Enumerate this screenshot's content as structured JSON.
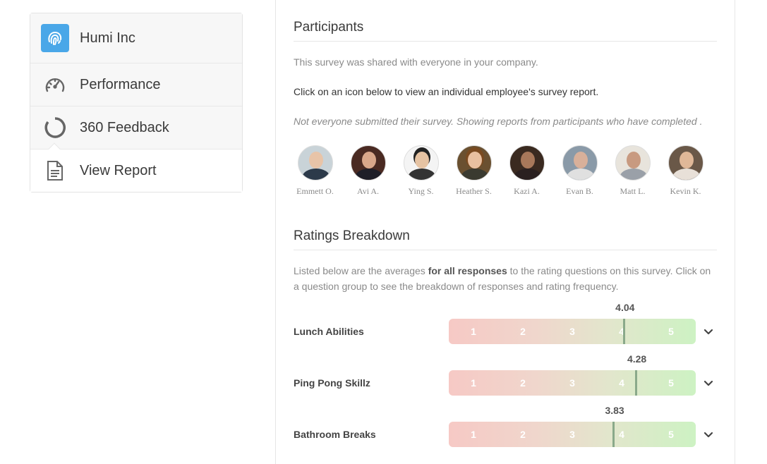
{
  "sidebar": {
    "company": "Humi Inc",
    "items": [
      {
        "label": "Performance",
        "icon": "speedometer-icon"
      },
      {
        "label": "360 Feedback",
        "icon": "circle-progress-icon"
      },
      {
        "label": "View Report",
        "icon": "document-icon"
      }
    ]
  },
  "participants": {
    "title": "Participants",
    "shared_text": "This survey was shared with everyone in your company.",
    "instruction": "Click on an icon below to view an individual employee's survey report.",
    "notice": "Not everyone submitted their survey. Showing reports from participants who have completed .",
    "people": [
      {
        "name": "Emmett O."
      },
      {
        "name": "Avi A."
      },
      {
        "name": "Ying S."
      },
      {
        "name": "Heather S."
      },
      {
        "name": "Kazi A."
      },
      {
        "name": "Evan B."
      },
      {
        "name": "Matt L."
      },
      {
        "name": "Kevin K."
      }
    ]
  },
  "ratings": {
    "title": "Ratings Breakdown",
    "description_pre": "Listed below are the averages ",
    "description_bold": "for all responses",
    "description_post": " to the rating questions on this survey. Click on a question group to see the breakdown of responses and rating frequency.",
    "ticks": [
      "1",
      "2",
      "3",
      "4",
      "5"
    ],
    "rows": [
      {
        "label": "Lunch Abilities",
        "score": "4.04",
        "value": 4.04
      },
      {
        "label": "Ping Pong Skillz",
        "score": "4.28",
        "value": 4.28
      },
      {
        "label": "Bathroom Breaks",
        "score": "3.83",
        "value": 3.83
      }
    ]
  },
  "colors": {
    "accent": "#4aa7e8",
    "low": "#f6c9c5",
    "high": "#cdf2c3"
  }
}
